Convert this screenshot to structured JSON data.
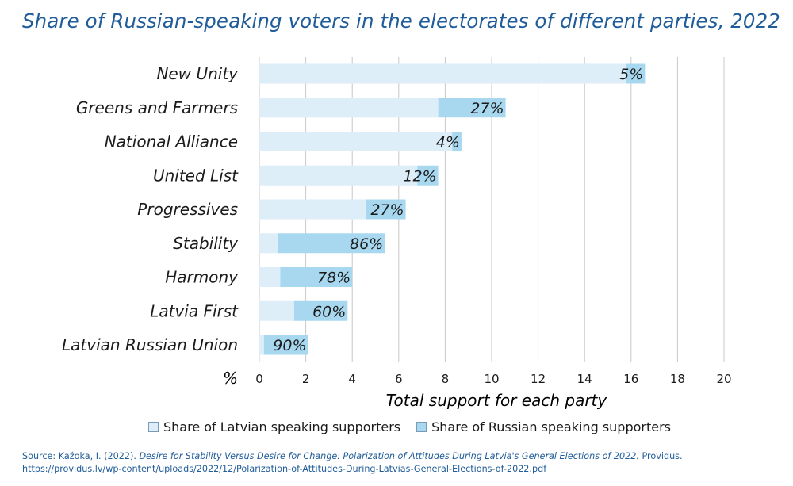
{
  "title": "Share of Russian-speaking voters in the electorates of different parties, 2022",
  "source": {
    "prefix": "Source: Kažoka, I. (2022). ",
    "italic": "Desire for Stability Versus Desire for Change: Polarization of Attitudes During Latvia's General Elections of 2022.",
    "suffix": " Providus. https://providus.lv/wp-content/uploads/2022/12/Polarization-of-Attitudes-During-Latvias-General-Elections-of-2022.pdf"
  },
  "legend": {
    "latvian": "Share of Latvian speaking supporters",
    "russian": "Share of Russian speaking supporters"
  },
  "colors": {
    "latvian": "#ddeef9",
    "russian": "#a8d8f0",
    "grid": "#c8c8c8",
    "title": "#1f5c99"
  },
  "chart_data": {
    "type": "bar",
    "orientation": "horizontal",
    "stacked": true,
    "xlabel": "Total support for each party",
    "ylabel": "%",
    "xlim": [
      0,
      20
    ],
    "xticks": [
      "0",
      "2",
      "4",
      "6",
      "8",
      "10",
      "12",
      "14",
      "16",
      "18",
      "20"
    ],
    "grid": true,
    "legend_position": "bottom",
    "categories": [
      "New Unity",
      "Greens and Farmers",
      "National Alliance",
      "United List",
      "Progressives",
      "Stability",
      "Harmony",
      "Latvia First",
      "Latvian Russian Union"
    ],
    "totals": [
      16.6,
      10.6,
      8.7,
      7.7,
      6.3,
      5.4,
      4.0,
      3.8,
      2.1
    ],
    "series": [
      {
        "name": "Share of Latvian speaking supporters",
        "values": [
          15.8,
          7.7,
          8.3,
          6.8,
          4.6,
          0.8,
          0.9,
          1.5,
          0.2
        ]
      },
      {
        "name": "Share of Russian speaking supporters",
        "values": [
          0.8,
          2.9,
          0.4,
          0.9,
          1.7,
          4.6,
          3.1,
          2.3,
          1.9
        ]
      }
    ],
    "data_labels": [
      "5%",
      "27%",
      "4%",
      "12%",
      "27%",
      "86%",
      "78%",
      "60%",
      "90%"
    ]
  }
}
